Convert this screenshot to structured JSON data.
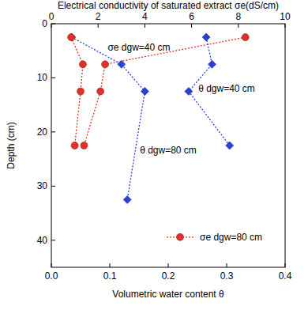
{
  "chart_data": {
    "type": "line",
    "x_label": "Volumetric water content θ",
    "x2_label": "Electrical conductivity of saturated extract σe(dS/cm)",
    "y_label": "Depth (cm)",
    "xlim": [
      0,
      0.4
    ],
    "xticks": [
      {
        "value": 0,
        "label": "0.0"
      },
      {
        "value": 0.1,
        "label": "0.1"
      },
      {
        "value": 0.2,
        "label": "0.2"
      },
      {
        "value": 0.3,
        "label": "0.3"
      },
      {
        "value": 0.4,
        "label": "0.4"
      }
    ],
    "x2lim": [
      0,
      10
    ],
    "x2ticks": [
      0,
      2,
      4,
      6,
      8,
      10
    ],
    "ylim": [
      45,
      0
    ],
    "yticks": [
      0,
      10,
      20,
      30,
      40
    ],
    "legend": "lower right",
    "series": [
      {
        "name": "σe dgw=40 cm",
        "color": "#e0302a",
        "marker": "circle",
        "line_style": "dotted",
        "axis": "x2",
        "x": [
          8.3,
          2.3,
          2.1,
          1.4
        ],
        "values": [
          2.5,
          7.5,
          12.5,
          22.5
        ]
      },
      {
        "name": "θ dgw=40 cm",
        "color": "#2a3fd6",
        "marker": "diamond",
        "line_style": "dotted",
        "axis": "x",
        "x": [
          0.265,
          0.275,
          0.235,
          0.305
        ],
        "values": [
          2.5,
          7.5,
          12.5,
          22.5
        ]
      },
      {
        "name": "θ dgw=80 cm",
        "color": "#2a3fd6",
        "marker": "diamond",
        "line_style": "dotted",
        "axis": "x",
        "x": [
          0.035,
          0.12,
          0.16,
          0.13
        ],
        "values": [
          2.5,
          7.5,
          12.5,
          32.5
        ]
      },
      {
        "name": "σe dgw=80 cm",
        "color": "#e0302a",
        "marker": "circle",
        "line_style": "dotted",
        "axis": "x2",
        "x": [
          0.85,
          1.35,
          1.25,
          1.0
        ],
        "values": [
          2.5,
          7.5,
          12.5,
          22.5
        ]
      }
    ],
    "annotations": [
      {
        "series": 0,
        "x": 0.15,
        "y": 5
      },
      {
        "series": 1,
        "x": 0.3,
        "y": 12.5
      },
      {
        "series": 2,
        "x": 0.2,
        "y": 24
      }
    ]
  }
}
